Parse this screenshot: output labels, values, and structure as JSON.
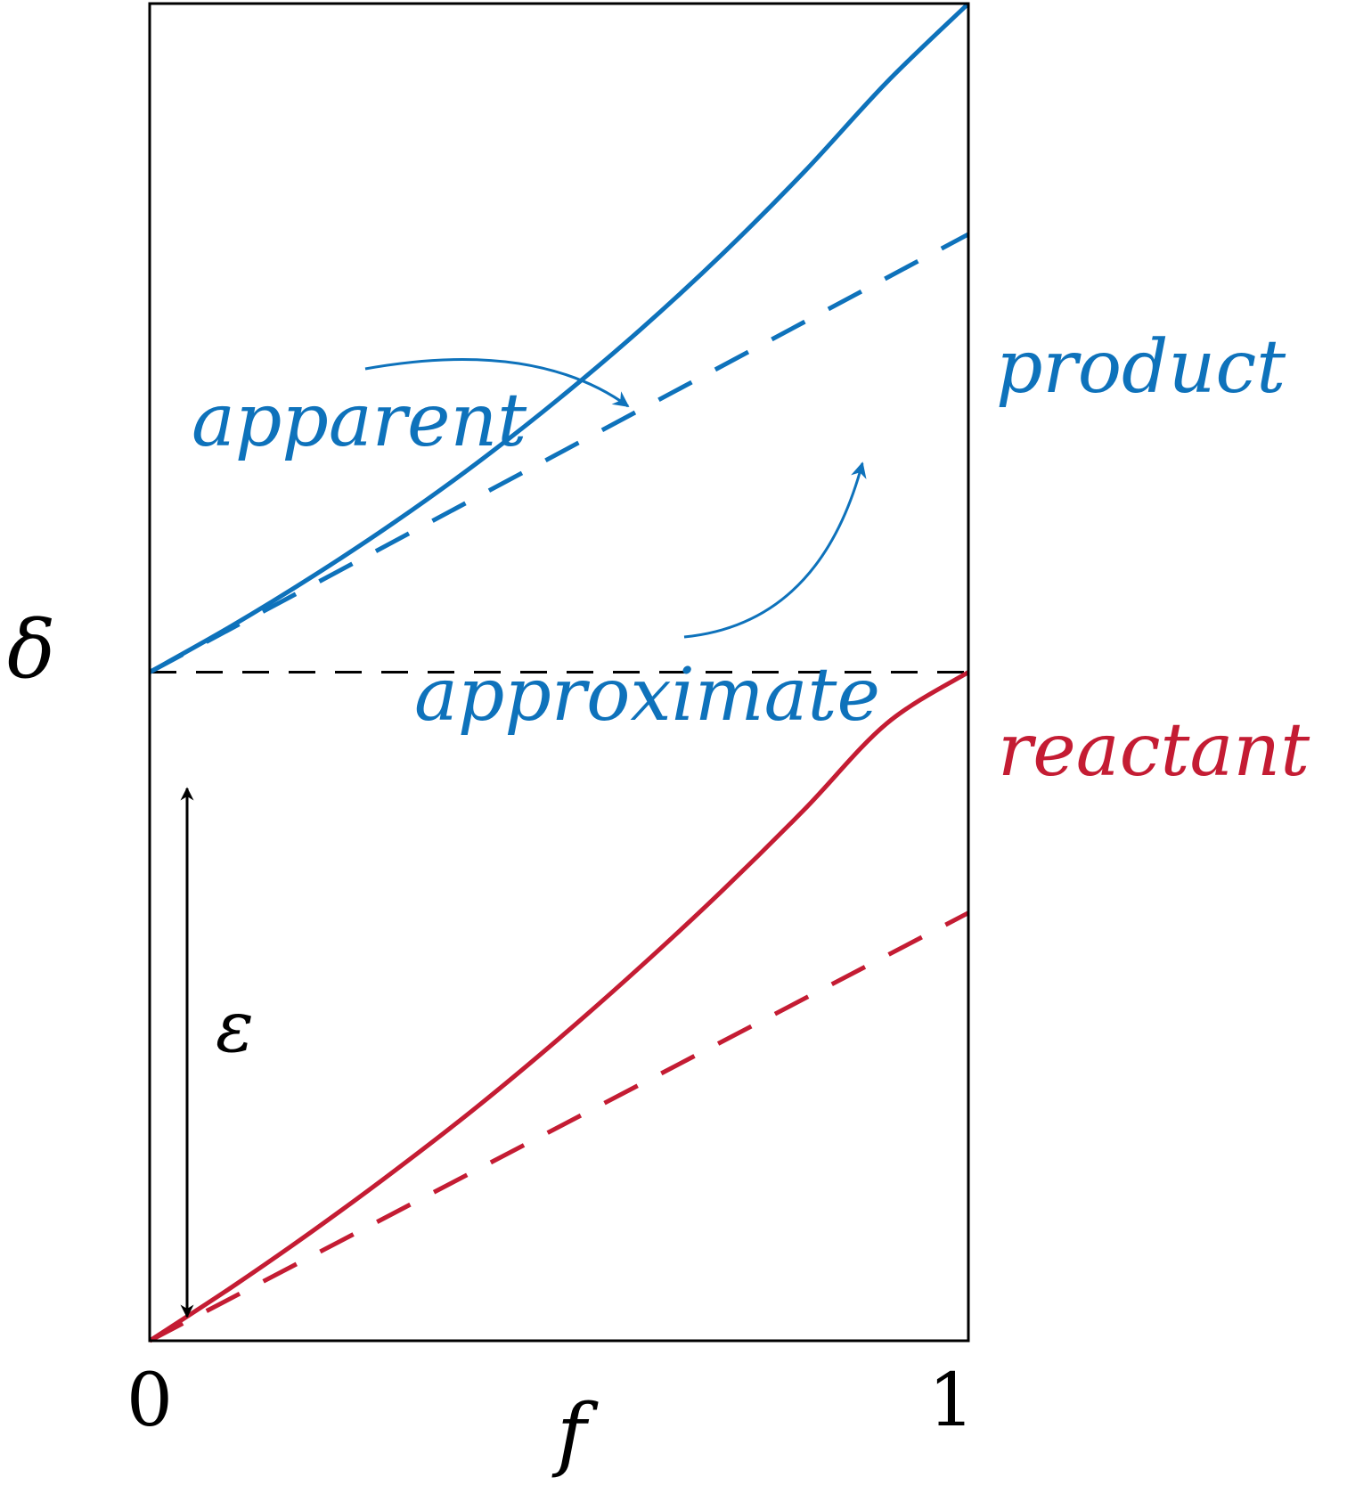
{
  "colors": {
    "product": "#0e72bb",
    "reactant": "#c41c33",
    "axis": "#000000"
  },
  "chart_data": {
    "type": "line",
    "xlabel": "f",
    "ylabel": "δ",
    "xticks": [
      "0",
      "1"
    ],
    "xlim": [
      0,
      1
    ],
    "ylim": [
      0,
      2
    ],
    "grid": false,
    "series": [
      {
        "name": "product",
        "style": "apparent",
        "line": "solid",
        "x": [
          0,
          0.1,
          0.2,
          0.3,
          0.4,
          0.5,
          0.6,
          0.7,
          0.8,
          0.9,
          1.0
        ],
        "y": [
          1.0,
          1.069,
          1.144,
          1.225,
          1.313,
          1.409,
          1.513,
          1.626,
          1.749,
          1.882,
          2.0
        ]
      },
      {
        "name": "product",
        "style": "approximate",
        "line": "dashed",
        "x": [
          0,
          1
        ],
        "y": [
          1.0,
          1.655
        ]
      },
      {
        "name": "reactant",
        "style": "apparent",
        "line": "solid",
        "x": [
          0,
          0.1,
          0.2,
          0.3,
          0.4,
          0.5,
          0.6,
          0.7,
          0.8,
          0.9,
          1.0
        ],
        "y": [
          0.0,
          0.08,
          0.165,
          0.255,
          0.35,
          0.452,
          0.56,
          0.674,
          0.795,
          0.923,
          1.0
        ]
      },
      {
        "name": "reactant",
        "style": "approximate",
        "line": "dashed",
        "x": [
          0,
          1
        ],
        "y": [
          0.0,
          0.64
        ]
      }
    ],
    "reference_line": {
      "y": 1.0,
      "line": "dashed"
    },
    "annotations": {
      "apparent": "apparent",
      "approximate": "approximate",
      "product": "product",
      "reactant": "reactant",
      "epsilon": "ε"
    }
  }
}
